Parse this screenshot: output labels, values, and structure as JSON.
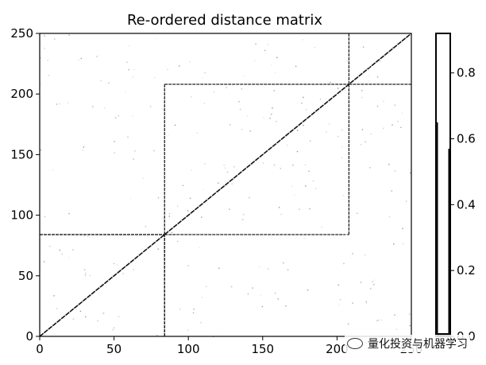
{
  "chart_data": {
    "type": "heatmap",
    "title": "Re-ordered distance matrix",
    "xlabel": "",
    "ylabel": "",
    "xlim": [
      0,
      250
    ],
    "ylim": [
      0,
      250
    ],
    "x_ticks": [
      0,
      50,
      100,
      150,
      200,
      250
    ],
    "y_ticks": [
      0,
      50,
      100,
      150,
      200,
      250
    ],
    "n": 250,
    "blocks": [
      {
        "start": 0,
        "end": 84
      },
      {
        "start": 84,
        "end": 208
      },
      {
        "start": 208,
        "end": 250
      }
    ],
    "diagonal_value": 0.0,
    "within_block_value": 0.9,
    "colorbar": {
      "ticks": [
        0.0,
        0.2,
        0.4,
        0.6,
        0.8
      ],
      "tick_labels": [
        "0.0",
        "0.2",
        "0.4",
        "0.6",
        "0.8"
      ],
      "range": [
        0.0,
        0.92
      ]
    },
    "grid": false,
    "legend": "none"
  },
  "watermark": {
    "text": "量化投资与机器学习",
    "icon": "wechat-icon"
  }
}
